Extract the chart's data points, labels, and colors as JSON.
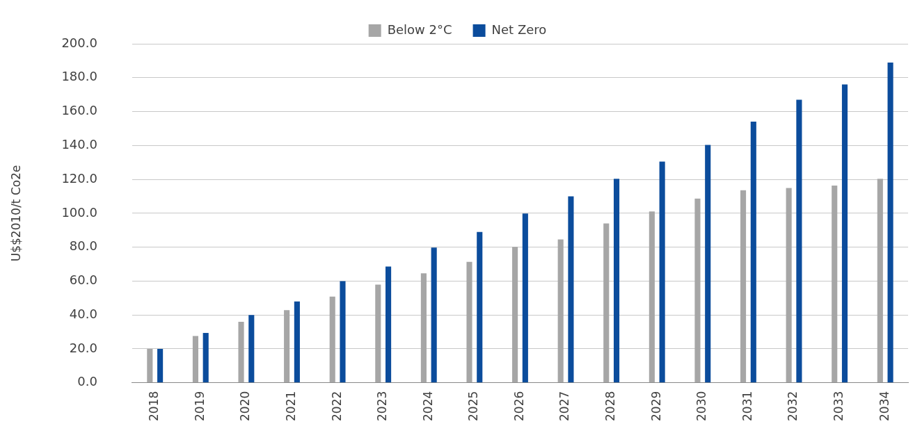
{
  "chart_data": {
    "type": "bar",
    "ylabel": "U$$2010/t Co2e",
    "categories": [
      "2018",
      "2019",
      "2020",
      "2021",
      "2022",
      "2023",
      "2024",
      "2025",
      "2026",
      "2027",
      "2028",
      "2029",
      "2030",
      "2031",
      "2032",
      "2033",
      "2034"
    ],
    "series": [
      {
        "name": "Below 2°C",
        "color": "#a6a6a6",
        "values": [
          20,
          27.6,
          36,
          42.8,
          50.8,
          57.9,
          64.6,
          71.3,
          80.2,
          84.6,
          94,
          101.1,
          108.7,
          113.6,
          114.9,
          116.3,
          120.3
        ]
      },
      {
        "name": "Net Zero",
        "color": "#0b4c9c",
        "values": [
          20,
          29.4,
          40,
          48,
          60,
          68.6,
          79.7,
          89,
          99.8,
          110,
          120.3,
          130.5,
          140.3,
          154.1,
          167,
          176,
          188.9
        ]
      }
    ],
    "ylim": [
      0,
      200
    ],
    "yticks": [
      {
        "value": 0,
        "label": "0.0"
      },
      {
        "value": 20,
        "label": "20.0"
      },
      {
        "value": 40,
        "label": "40.0"
      },
      {
        "value": 60,
        "label": "60.0"
      },
      {
        "value": 80,
        "label": "80.0"
      },
      {
        "value": 100,
        "label": "100.0"
      },
      {
        "value": 120,
        "label": "120.0"
      },
      {
        "value": 140,
        "label": "140.0"
      },
      {
        "value": 160,
        "label": "160.0"
      },
      {
        "value": 180,
        "label": "180.0"
      },
      {
        "value": 200,
        "label": "200.0"
      }
    ],
    "grid": "y",
    "legend": "top"
  }
}
